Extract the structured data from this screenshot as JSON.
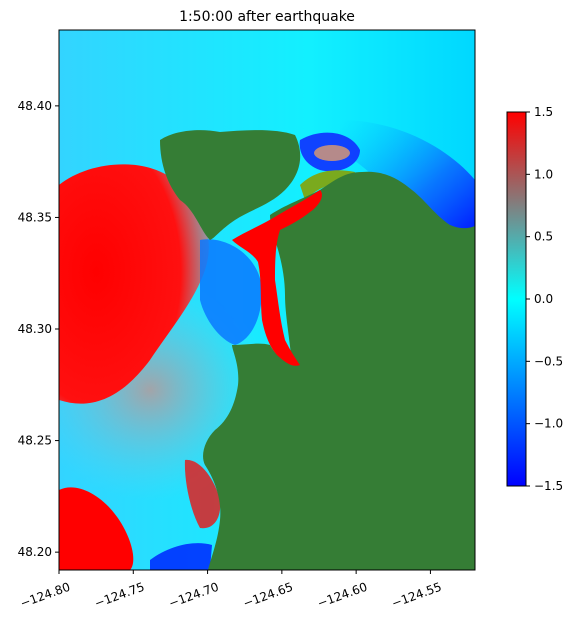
{
  "chart_data": {
    "type": "heatmap",
    "title": "1:50:00 after earthquake",
    "xlabel": "",
    "ylabel": "",
    "xlim": [
      -124.8,
      -124.52
    ],
    "ylim": [
      48.192,
      48.434
    ],
    "x_ticks": [
      -124.8,
      -124.75,
      -124.7,
      -124.65,
      -124.6,
      -124.55
    ],
    "x_tick_labels": [
      "−124.80",
      "−124.75",
      "−124.70",
      "−124.65",
      "−124.60",
      "−124.55"
    ],
    "y_ticks": [
      48.2,
      48.25,
      48.3,
      48.35,
      48.4
    ],
    "y_tick_labels": [
      "48.20",
      "48.25",
      "48.30",
      "48.35",
      "48.40"
    ],
    "colorbar": {
      "range": [
        -1.5,
        1.5
      ],
      "ticks": [
        -1.5,
        -1.0,
        -0.5,
        0.0,
        0.5,
        1.0,
        1.5
      ],
      "tick_labels": [
        "−1.5",
        "−1.0",
        "−0.5",
        "0.0",
        "0.5",
        "1.0",
        "1.5"
      ],
      "colormap": [
        "#0000ff",
        "#00ffff",
        "#808080",
        "#ff0000"
      ]
    },
    "colors": {
      "land": "#357d35",
      "low_land": "#7aaa1e"
    },
    "grid": false
  }
}
